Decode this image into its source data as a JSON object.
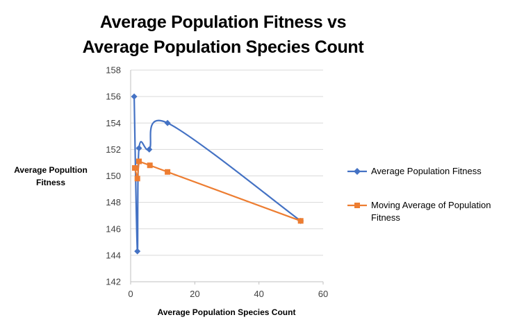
{
  "chart_data": {
    "type": "scatter",
    "title": "Average Population Fitness vs Average Population Species Count",
    "xlabel": "Average Population Species Count",
    "ylabel": "Average Popultion Fitness",
    "xlim": [
      0,
      60
    ],
    "ylim": [
      142,
      158
    ],
    "x_ticks": [
      "0",
      "20",
      "40",
      "60"
    ],
    "y_ticks": [
      "142",
      "144",
      "146",
      "148",
      "150",
      "152",
      "154",
      "156",
      "158"
    ],
    "grid": "horizontal",
    "legend_position": "right",
    "series": [
      {
        "name": "Average Population Fitness",
        "color": "#4472C4",
        "marker": "diamond",
        "smooth": true,
        "points": [
          {
            "x": 1.1,
            "y": 156.0
          },
          {
            "x": 2.1,
            "y": 144.3
          },
          {
            "x": 2.6,
            "y": 152.1
          },
          {
            "x": 5.8,
            "y": 152.0
          },
          {
            "x": 11.5,
            "y": 154.0
          },
          {
            "x": 53.0,
            "y": 146.6
          }
        ]
      },
      {
        "name": "Moving Average of Population Fitness",
        "color": "#ED7D31",
        "marker": "square",
        "smooth": false,
        "points": [
          {
            "x": 1.3,
            "y": 150.6
          },
          {
            "x": 2.1,
            "y": 149.8
          },
          {
            "x": 2.6,
            "y": 151.1
          },
          {
            "x": 6.0,
            "y": 150.8
          },
          {
            "x": 11.5,
            "y": 150.3
          },
          {
            "x": 53.0,
            "y": 146.6
          }
        ]
      }
    ]
  }
}
